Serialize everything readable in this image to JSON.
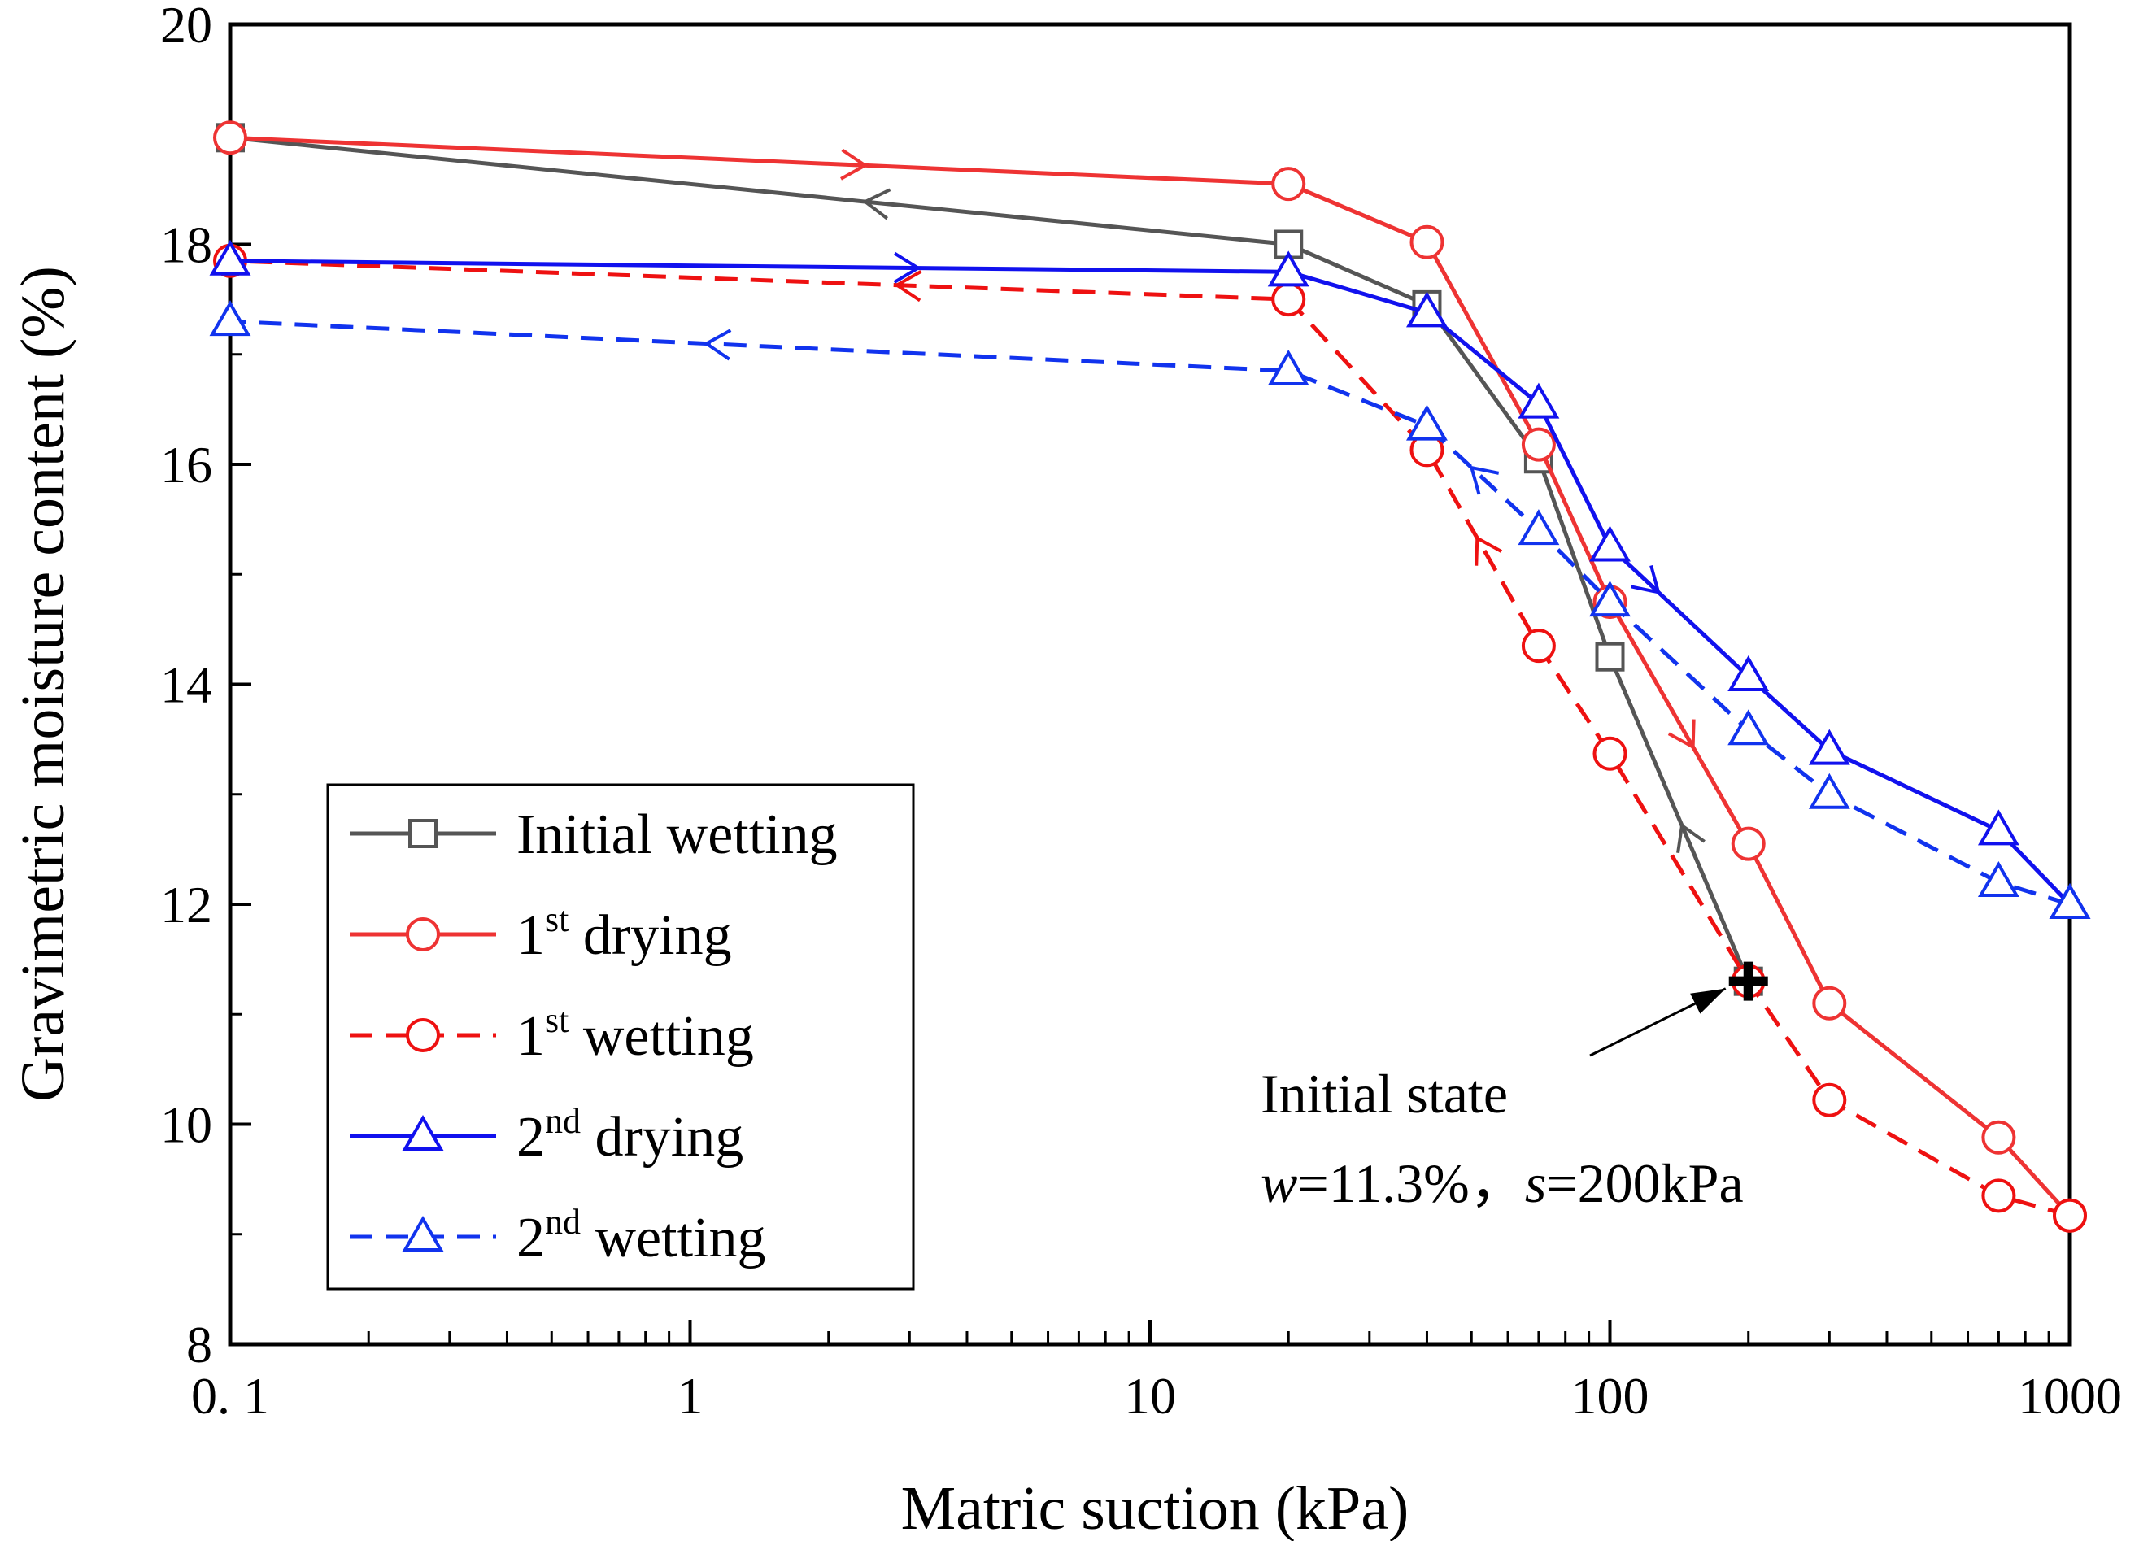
{
  "chart_data": {
    "type": "line",
    "xscale": "log",
    "xlim": [
      0.1,
      1000
    ],
    "ylim": [
      8,
      20
    ],
    "xlabel": "Matric suction (kPa)",
    "ylabel": "Gravimetric moisture content (%)",
    "x_ticks": [
      {
        "value": 0.1,
        "label": "0. 1"
      },
      {
        "value": 1,
        "label": "1"
      },
      {
        "value": 10,
        "label": "10"
      },
      {
        "value": 100,
        "label": "100"
      },
      {
        "value": 1000,
        "label": "1000"
      }
    ],
    "y_ticks": [
      {
        "value": 8,
        "label": "8"
      },
      {
        "value": 10,
        "label": "10"
      },
      {
        "value": 12,
        "label": "12"
      },
      {
        "value": 14,
        "label": "14"
      },
      {
        "value": 16,
        "label": "16"
      },
      {
        "value": 18,
        "label": "18"
      },
      {
        "value": 20,
        "label": "20"
      }
    ],
    "series": [
      {
        "name": "Initial wetting",
        "legend_base": "Initial wetting",
        "legend_sup": "",
        "legend_tail": "",
        "color": "#555555",
        "dash": "solid",
        "marker": "square",
        "x": [
          200,
          100,
          70,
          40,
          20,
          0.1
        ],
        "y": [
          11.3,
          14.25,
          16.05,
          17.45,
          18.0,
          18.97
        ],
        "arrows": [
          {
            "seg": 0,
            "t": 0.48,
            "dir": "forward"
          },
          {
            "seg": 4,
            "t": 0.4,
            "dir": "forward"
          }
        ]
      },
      {
        "name": "1st drying",
        "legend_base": "1",
        "legend_sup": "st",
        "legend_tail": " drying",
        "color": "#ee3333",
        "dash": "solid",
        "marker": "circle",
        "x": [
          0.1,
          20,
          40,
          70,
          100,
          200,
          300,
          700,
          1000
        ],
        "y": [
          18.97,
          18.55,
          18.02,
          16.18,
          14.75,
          12.55,
          11.1,
          9.88,
          9.17
        ],
        "arrows": [
          {
            "seg": 0,
            "t": 0.6,
            "dir": "forward"
          },
          {
            "seg": 4,
            "t": 0.6,
            "dir": "forward"
          }
        ]
      },
      {
        "name": "1st wetting",
        "legend_base": "1",
        "legend_sup": "st",
        "legend_tail": " wetting",
        "color": "#ee1111",
        "dash": "dashed",
        "marker": "circle",
        "x": [
          1000,
          700,
          300,
          200,
          100,
          70,
          40,
          20,
          0.1
        ],
        "y": [
          9.17,
          9.35,
          10.22,
          11.3,
          13.37,
          14.35,
          16.13,
          17.5,
          17.85
        ],
        "arrows": [
          {
            "seg": 5,
            "t": 0.55,
            "dir": "forward"
          },
          {
            "seg": 7,
            "t": 0.37,
            "dir": "forward"
          }
        ]
      },
      {
        "name": "2nd drying",
        "legend_base": "2",
        "legend_sup": "nd",
        "legend_tail": " drying",
        "color": "#1111ee",
        "dash": "solid",
        "marker": "triangle",
        "x": [
          0.1,
          20,
          40,
          70,
          100,
          200,
          300,
          700,
          1000
        ],
        "y": [
          17.85,
          17.75,
          17.38,
          16.55,
          15.25,
          14.07,
          13.4,
          12.67,
          12.0
        ],
        "arrows": [
          {
            "seg": 0,
            "t": 0.65,
            "dir": "forward"
          },
          {
            "seg": 4,
            "t": 0.35,
            "dir": "forward"
          }
        ]
      },
      {
        "name": "2nd wetting",
        "legend_base": "2",
        "legend_sup": "nd",
        "legend_tail": " wetting",
        "color": "#1133ee",
        "dash": "dashed",
        "marker": "triangle",
        "x": [
          1000,
          700,
          300,
          200,
          100,
          70,
          40,
          20,
          0.1
        ],
        "y": [
          12.0,
          12.2,
          13.0,
          13.58,
          14.75,
          15.4,
          16.35,
          16.85,
          17.3
        ],
        "arrows": [
          {
            "seg": 5,
            "t": 0.6,
            "dir": "forward"
          },
          {
            "seg": 7,
            "t": 0.55,
            "dir": "forward"
          }
        ]
      }
    ],
    "initial_state": {
      "x": 200,
      "y": 11.3,
      "label_line1": "Initial state",
      "label_w": "w",
      "label_w_value": "=11.3%，",
      "label_s": "s",
      "label_s_value": "=200kPa"
    },
    "legend_position": "bottom-left"
  }
}
